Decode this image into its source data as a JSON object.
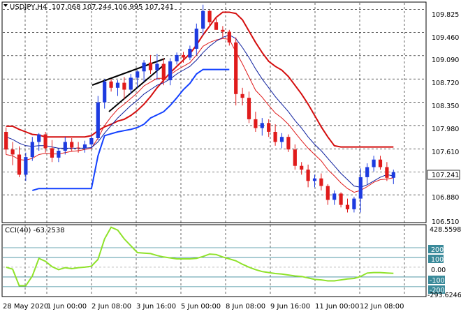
{
  "header": {
    "symbol": "USDJPY,H4",
    "ohlc": "107.068 107.244 106.995 107.241"
  },
  "main_axis": {
    "ticks": [
      "109.825",
      "109.460",
      "109.090",
      "108.720",
      "108.350",
      "107.980",
      "107.610",
      "107.241",
      "106.880",
      "106.510"
    ],
    "current_price": "107.241"
  },
  "cci": {
    "label": "CCI(40) -63.2538",
    "max_label": "428.5598",
    "min_label": "-293.6246",
    "levels": [
      "200",
      "100",
      "0.00",
      "-100",
      "-200"
    ]
  },
  "time_axis": {
    "labels": [
      "28 May 2020",
      "1 Jun 00:00",
      "2 Jun 08:00",
      "3 Jun 16:00",
      "5 Jun 00:00",
      "8 Jun 08:00",
      "9 Jun 16:00",
      "11 Jun 00:00",
      "12 Jun 08:00"
    ]
  },
  "colors": {
    "bull": "#1d3be0",
    "bear": "#e01b1b",
    "ma_red": "#e01b1b",
    "ma_blue": "#0d1f9e",
    "envelope_red": "#d40d0d",
    "envelope_blue": "#1240ff",
    "cci_line": "#8fe22a",
    "grid": "#000000",
    "level_line": "#3a8a9a"
  },
  "chart_data": {
    "type": "candlestick",
    "series_name": "USDJPY,H4",
    "candles_ohlc": [
      [
        107.88,
        107.95,
        107.52,
        107.6
      ],
      [
        107.6,
        107.72,
        107.35,
        107.52
      ],
      [
        107.52,
        107.65,
        107.16,
        107.2
      ],
      [
        107.2,
        107.55,
        107.1,
        107.48
      ],
      [
        107.48,
        107.8,
        107.42,
        107.72
      ],
      [
        107.72,
        107.86,
        107.58,
        107.84
      ],
      [
        107.84,
        107.88,
        107.55,
        107.62
      ],
      [
        107.62,
        107.75,
        107.4,
        107.47
      ],
      [
        107.47,
        107.62,
        107.4,
        107.58
      ],
      [
        107.58,
        107.8,
        107.52,
        107.72
      ],
      [
        107.72,
        107.78,
        107.57,
        107.63
      ],
      [
        107.63,
        107.72,
        107.55,
        107.62
      ],
      [
        107.62,
        107.74,
        107.55,
        107.68
      ],
      [
        107.68,
        107.82,
        107.62,
        107.78
      ],
      [
        107.78,
        108.45,
        107.75,
        108.35
      ],
      [
        108.35,
        108.72,
        108.25,
        108.68
      ],
      [
        108.68,
        108.72,
        108.52,
        108.58
      ],
      [
        108.58,
        108.7,
        108.45,
        108.66
      ],
      [
        108.66,
        108.75,
        108.4,
        108.55
      ],
      [
        108.55,
        108.8,
        108.48,
        108.74
      ],
      [
        108.74,
        108.86,
        108.58,
        108.84
      ],
      [
        108.84,
        109.02,
        108.68,
        108.98
      ],
      [
        108.98,
        109.1,
        108.8,
        108.86
      ],
      [
        108.86,
        109.12,
        108.7,
        108.96
      ],
      [
        108.96,
        109.05,
        108.62,
        108.7
      ],
      [
        108.7,
        109.05,
        108.62,
        109.0
      ],
      [
        109.0,
        109.14,
        108.95,
        109.1
      ],
      [
        109.1,
        109.15,
        108.98,
        109.06
      ],
      [
        109.06,
        109.25,
        109.02,
        109.2
      ],
      [
        109.2,
        109.6,
        109.1,
        109.52
      ],
      [
        109.52,
        109.9,
        109.42,
        109.8
      ],
      [
        109.8,
        109.82,
        109.55,
        109.62
      ],
      [
        109.62,
        109.7,
        109.5,
        109.5
      ],
      [
        109.5,
        109.56,
        109.38,
        109.47
      ],
      [
        109.47,
        109.5,
        109.25,
        109.3
      ],
      [
        109.3,
        109.38,
        108.3,
        108.48
      ],
      [
        108.48,
        108.58,
        108.3,
        108.42
      ],
      [
        108.42,
        108.52,
        108.02,
        108.08
      ],
      [
        108.08,
        108.2,
        107.88,
        107.94
      ],
      [
        107.94,
        108.1,
        107.82,
        108.02
      ],
      [
        108.02,
        108.08,
        107.8,
        107.88
      ],
      [
        107.88,
        108.0,
        107.66,
        107.72
      ],
      [
        107.72,
        107.86,
        107.62,
        107.8
      ],
      [
        107.8,
        107.84,
        107.56,
        107.6
      ],
      [
        107.6,
        107.68,
        107.28,
        107.34
      ],
      [
        107.34,
        107.4,
        107.2,
        107.28
      ],
      [
        107.28,
        107.36,
        107.0,
        107.1
      ],
      [
        107.1,
        107.2,
        107.0,
        107.14
      ],
      [
        107.14,
        107.22,
        106.95,
        107.02
      ],
      [
        107.02,
        107.05,
        106.72,
        106.8
      ],
      [
        106.8,
        106.95,
        106.72,
        106.9
      ],
      [
        106.9,
        106.92,
        106.68,
        106.72
      ],
      [
        106.72,
        106.82,
        106.6,
        106.65
      ],
      [
        106.65,
        106.85,
        106.6,
        106.82
      ],
      [
        106.82,
        107.3,
        106.6,
        107.16
      ],
      [
        107.16,
        107.38,
        107.05,
        107.32
      ],
      [
        107.32,
        107.5,
        107.25,
        107.44
      ],
      [
        107.44,
        107.5,
        107.28,
        107.32
      ],
      [
        107.32,
        107.4,
        107.1,
        107.15
      ],
      [
        107.15,
        107.28,
        107.05,
        107.24
      ]
    ],
    "ma_red": [
      107.52,
      107.5,
      107.44,
      107.43,
      107.46,
      107.52,
      107.54,
      107.53,
      107.53,
      107.55,
      107.57,
      107.58,
      107.6,
      107.62,
      107.78,
      107.98,
      108.12,
      108.24,
      108.32,
      108.41,
      108.5,
      108.61,
      108.67,
      108.73,
      108.73,
      108.79,
      108.86,
      108.92,
      108.98,
      109.1,
      109.24,
      109.3,
      109.34,
      109.36,
      109.35,
      109.15,
      108.96,
      108.75,
      108.54,
      108.43,
      108.3,
      108.18,
      108.1,
      108.0,
      107.87,
      107.74,
      107.62,
      107.52,
      107.42,
      107.28,
      107.18,
      107.07,
      106.98,
      106.92,
      106.95,
      107.01,
      107.08,
      107.12,
      107.13,
      107.15
    ],
    "ma_blue": [
      107.8,
      107.76,
      107.7,
      107.66,
      107.65,
      107.66,
      107.66,
      107.64,
      107.62,
      107.62,
      107.62,
      107.62,
      107.62,
      107.63,
      107.72,
      107.86,
      107.98,
      108.1,
      108.2,
      108.3,
      108.38,
      108.48,
      108.55,
      108.62,
      108.66,
      108.72,
      108.8,
      108.86,
      108.92,
      109.02,
      109.14,
      109.24,
      109.32,
      109.38,
      109.42,
      109.36,
      109.22,
      109.06,
      108.88,
      108.72,
      108.58,
      108.44,
      108.32,
      108.2,
      108.06,
      107.94,
      107.8,
      107.68,
      107.58,
      107.46,
      107.34,
      107.22,
      107.12,
      107.02,
      107.0,
      107.04,
      107.1,
      107.16,
      107.2,
      107.18
    ],
    "envelope_red": [
      107.97,
      107.97,
      107.92,
      107.88,
      107.84,
      107.83,
      107.8,
      107.8,
      107.8,
      107.8,
      107.8,
      107.8,
      107.8,
      107.82,
      107.9,
      107.96,
      108.0,
      108.05,
      108.08,
      108.14,
      108.22,
      108.32,
      108.44,
      108.58,
      108.7,
      108.82,
      108.92,
      109.02,
      109.12,
      109.26,
      109.42,
      109.56,
      109.7,
      109.78,
      109.78,
      109.76,
      109.66,
      109.48,
      109.3,
      109.14,
      109.0,
      108.92,
      108.86,
      108.76,
      108.62,
      108.48,
      108.32,
      108.14,
      107.96,
      107.8,
      107.66,
      107.64,
      107.64,
      107.64,
      107.64,
      107.64,
      107.64,
      107.64,
      107.64,
      107.64
    ],
    "envelope_blue": [
      null,
      null,
      null,
      null,
      106.95,
      106.98,
      106.98,
      106.98,
      106.98,
      106.98,
      106.98,
      106.98,
      106.98,
      106.98,
      107.5,
      107.82,
      107.85,
      107.88,
      107.9,
      107.92,
      107.95,
      108.0,
      108.1,
      108.15,
      108.2,
      108.3,
      108.42,
      108.55,
      108.65,
      108.8,
      108.87,
      108.87,
      108.87,
      108.87,
      108.87
    ],
    "cci": [
      0,
      -20,
      -190,
      -190,
      -90,
      90,
      60,
      5,
      -25,
      -5,
      -15,
      -5,
      0,
      10,
      80,
      290,
      410,
      380,
      290,
      220,
      150,
      145,
      140,
      120,
      105,
      95,
      85,
      85,
      85,
      90,
      110,
      135,
      130,
      105,
      85,
      65,
      30,
      0,
      -25,
      -45,
      -55,
      -65,
      -70,
      -80,
      -90,
      -95,
      -110,
      -125,
      -130,
      -140,
      -140,
      -130,
      -120,
      -115,
      -95,
      -60,
      -55,
      -55,
      -60,
      -63.25
    ],
    "cci_range": [
      -293.6246,
      428.5598
    ],
    "ylim": [
      106.45,
      109.93
    ]
  }
}
